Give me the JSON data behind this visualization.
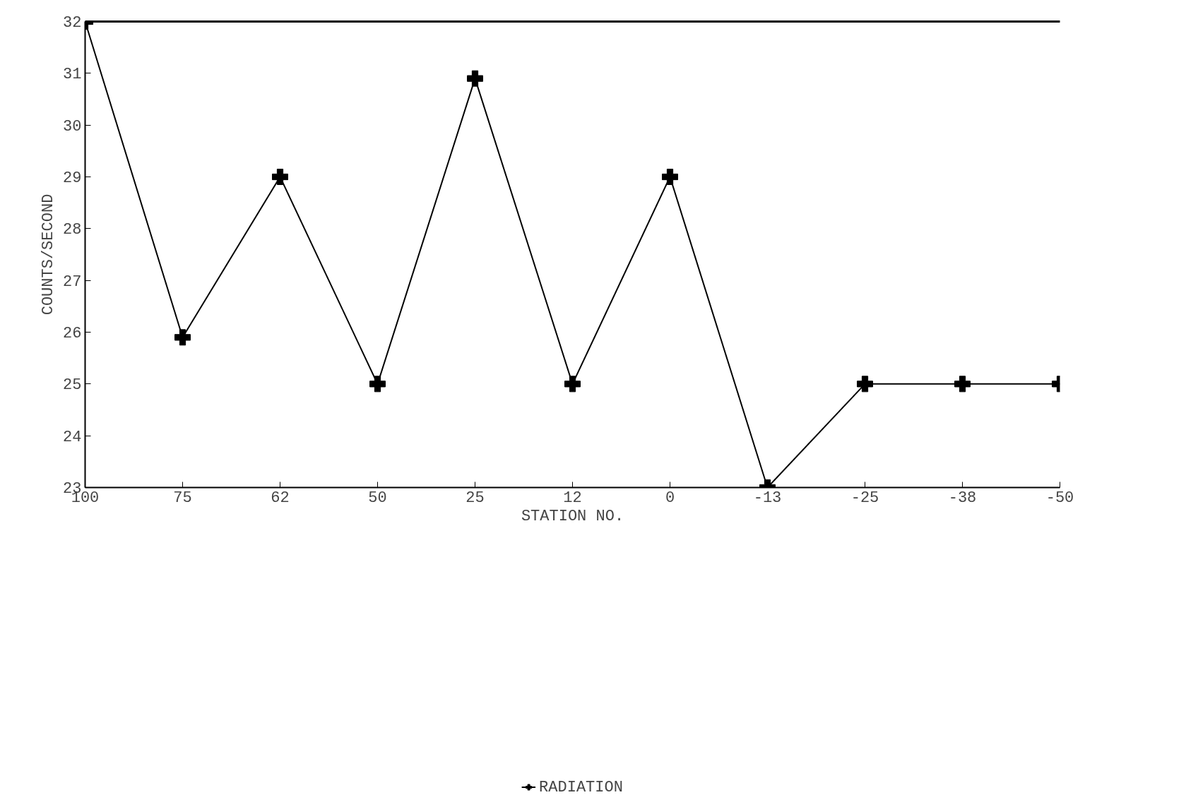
{
  "chart_data": {
    "type": "line",
    "xlabel": "STATION NO.",
    "ylabel": "COUNTS/SECOND",
    "categories": [
      "100",
      "75",
      "62",
      "50",
      "25",
      "12",
      "0",
      "-13",
      "-25",
      "-38",
      "-50"
    ],
    "series": [
      {
        "name": "RADIATION",
        "color": "#000000",
        "values": [
          32,
          25.9,
          29,
          25,
          30.9,
          25,
          29,
          23,
          25,
          25,
          25
        ]
      }
    ],
    "ylim": [
      23,
      32
    ],
    "yticks": [
      23,
      24,
      25,
      26,
      27,
      28,
      29,
      30,
      31,
      32
    ],
    "marker": "cross",
    "line_style": "solid",
    "grid": false,
    "legend": "bottom"
  }
}
